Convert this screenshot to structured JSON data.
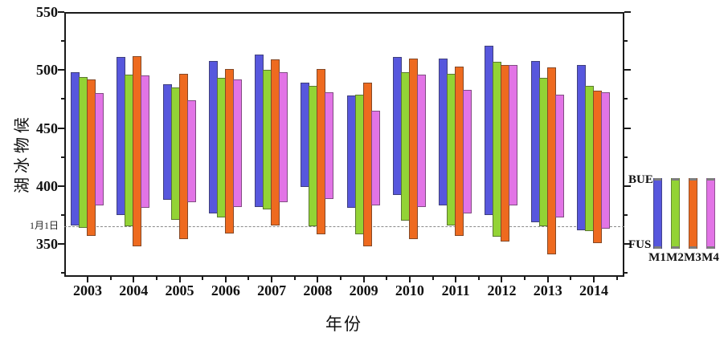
{
  "chart_data": {
    "type": "bar",
    "subtype": "floating-range-bars",
    "title": "",
    "xlabel": "年份",
    "ylabel": "湖冰物候",
    "categories": [
      "2003",
      "2004",
      "2005",
      "2006",
      "2007",
      "2008",
      "2009",
      "2010",
      "2011",
      "2012",
      "2013",
      "2014"
    ],
    "yticks_major": [
      550,
      500,
      450,
      400,
      350
    ],
    "yticks_minor": [
      525,
      475,
      425,
      375,
      325
    ],
    "ylim": [
      322,
      550
    ],
    "grid": false,
    "reference_line": {
      "label": "1月1日",
      "value": 365
    },
    "series": [
      {
        "name": "M1",
        "color": "#5757dd",
        "ranges": [
          [
            366,
            498
          ],
          [
            375,
            511
          ],
          [
            388,
            488
          ],
          [
            376,
            508
          ],
          [
            382,
            513
          ],
          [
            399,
            489
          ],
          [
            381,
            478
          ],
          [
            392,
            511
          ],
          [
            383,
            510
          ],
          [
            375,
            521
          ],
          [
            369,
            508
          ],
          [
            362,
            504
          ]
        ]
      },
      {
        "name": "M2",
        "color": "#93d335",
        "ranges": [
          [
            364,
            494
          ],
          [
            365,
            496
          ],
          [
            371,
            485
          ],
          [
            373,
            493
          ],
          [
            380,
            500
          ],
          [
            365,
            486
          ],
          [
            358,
            479
          ],
          [
            370,
            498
          ],
          [
            366,
            497
          ],
          [
            356,
            507
          ],
          [
            365,
            493
          ],
          [
            361,
            486
          ]
        ]
      },
      {
        "name": "M3",
        "color": "#ee6a1f",
        "ranges": [
          [
            357,
            492
          ],
          [
            348,
            512
          ],
          [
            354,
            497
          ],
          [
            359,
            501
          ],
          [
            366,
            509
          ],
          [
            358,
            501
          ],
          [
            348,
            489
          ],
          [
            354,
            510
          ],
          [
            357,
            503
          ],
          [
            352,
            504
          ],
          [
            341,
            502
          ],
          [
            351,
            482
          ]
        ]
      },
      {
        "name": "M4",
        "color": "#e274e6",
        "ranges": [
          [
            383,
            480
          ],
          [
            381,
            495
          ],
          [
            386,
            474
          ],
          [
            382,
            492
          ],
          [
            386,
            498
          ],
          [
            389,
            481
          ],
          [
            383,
            465
          ],
          [
            382,
            496
          ],
          [
            376,
            483
          ],
          [
            383,
            504
          ],
          [
            373,
            479
          ],
          [
            363,
            481
          ]
        ]
      }
    ],
    "legend": {
      "position": "right",
      "top_label": "BUE",
      "bottom_label": "FUS",
      "items": [
        "M1",
        "M2",
        "M3",
        "M4"
      ],
      "cap_color": "#7d7d7d"
    }
  }
}
